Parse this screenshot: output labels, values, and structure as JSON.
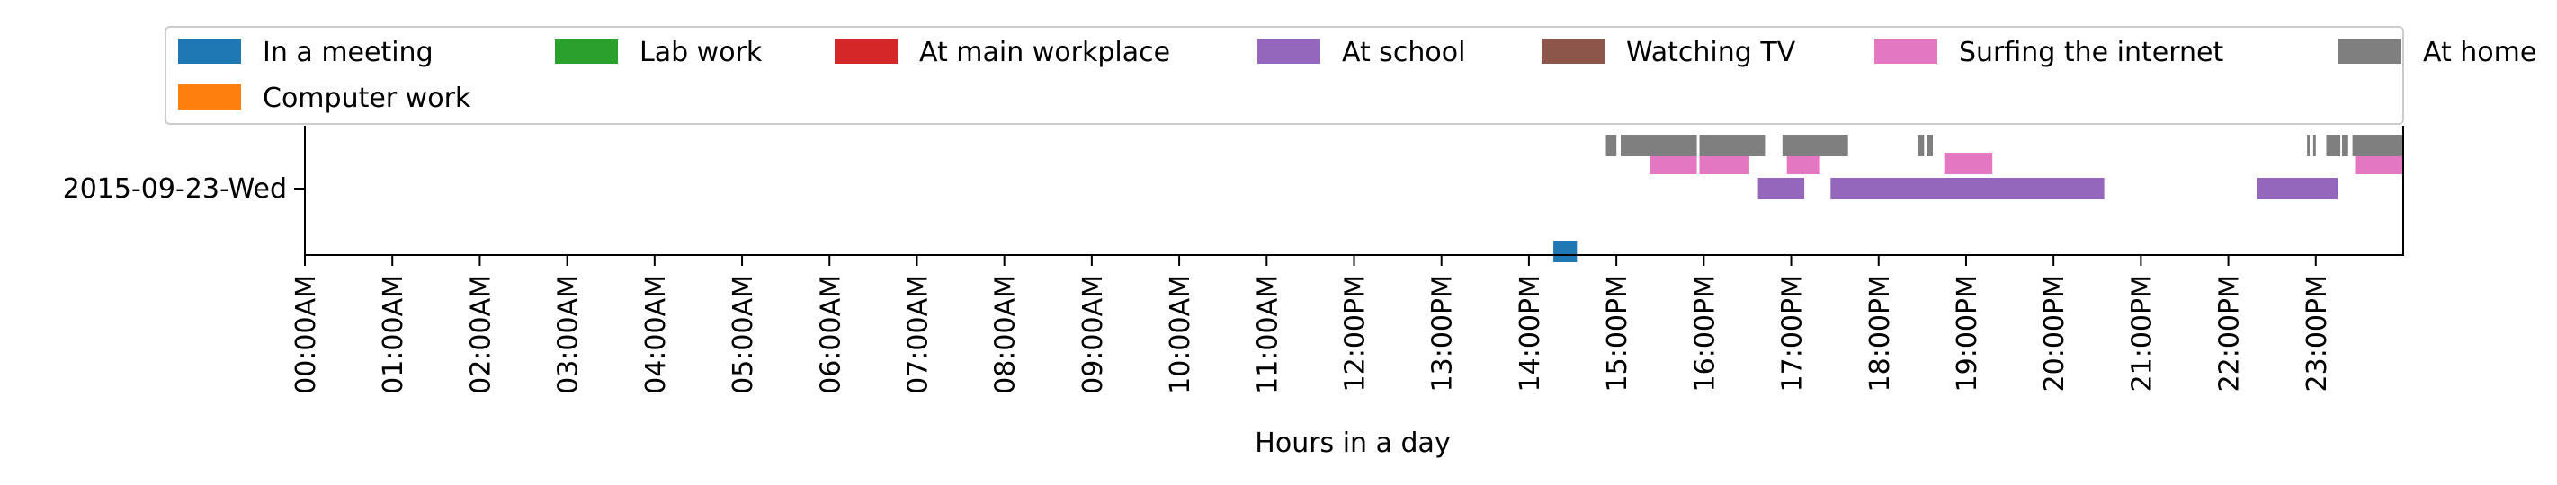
{
  "chart_data": {
    "type": "timeline",
    "xlabel": "Hours in a day",
    "xlim_hours": [
      0,
      24
    ],
    "x_ticks": [
      "00:00AM",
      "01:00AM",
      "02:00AM",
      "03:00AM",
      "04:00AM",
      "05:00AM",
      "06:00AM",
      "07:00AM",
      "08:00AM",
      "09:00AM",
      "10:00AM",
      "11:00AM",
      "12:00PM",
      "13:00PM",
      "14:00PM",
      "15:00PM",
      "16:00PM",
      "17:00PM",
      "18:00PM",
      "19:00PM",
      "20:00PM",
      "21:00PM",
      "22:00PM",
      "23:00PM"
    ],
    "y_category": "2015-09-23-Wed",
    "legend_position": "top",
    "legend": [
      {
        "name": "In a meeting",
        "color": "#1f77b4"
      },
      {
        "name": "Lab work",
        "color": "#2ca02c"
      },
      {
        "name": "At main workplace",
        "color": "#d62728"
      },
      {
        "name": "At school",
        "color": "#9467bd"
      },
      {
        "name": "Watching TV",
        "color": "#8c564b"
      },
      {
        "name": "Surfing the internet",
        "color": "#e377c2"
      },
      {
        "name": "At home",
        "color": "#7f7f7f"
      },
      {
        "name": "Computer work",
        "color": "#ff7f0e"
      }
    ],
    "series": [
      {
        "name": "In a meeting",
        "color": "#1f77b4",
        "lane": -1,
        "intervals": [
          [
            14.28,
            14.55
          ]
        ]
      },
      {
        "name": "At school",
        "color": "#9467bd",
        "lane": 0,
        "intervals": [
          [
            16.62,
            17.15
          ],
          [
            17.45,
            20.58
          ],
          [
            22.33,
            23.25
          ]
        ]
      },
      {
        "name": "Surfing the internet",
        "color": "#e377c2",
        "lane": 1,
        "intervals": [
          [
            15.38,
            15.92
          ],
          [
            15.95,
            16.52
          ],
          [
            16.95,
            17.33
          ],
          [
            18.75,
            19.3
          ],
          [
            23.45,
            24.0
          ]
        ]
      },
      {
        "name": "At home",
        "color": "#7f7f7f",
        "lane": 2,
        "intervals": [
          [
            14.88,
            15.0
          ],
          [
            15.05,
            15.92
          ],
          [
            15.95,
            16.7
          ],
          [
            16.9,
            17.65
          ],
          [
            18.45,
            18.52
          ],
          [
            18.55,
            18.62
          ],
          [
            22.9,
            22.93
          ],
          [
            22.97,
            23.0
          ],
          [
            23.12,
            23.28
          ],
          [
            23.3,
            23.37
          ],
          [
            23.42,
            24.0
          ]
        ]
      }
    ]
  }
}
